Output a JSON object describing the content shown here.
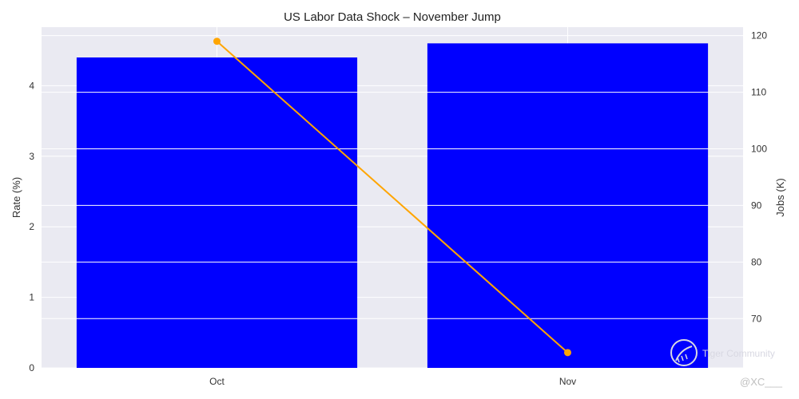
{
  "chart_data": {
    "type": "bar+line",
    "title": "US Labor Data Shock – November Jump",
    "categories": [
      "Oct",
      "Nov"
    ],
    "bar_series": {
      "name": "Rate (%)",
      "axis": "left",
      "values": [
        4.4,
        4.6
      ],
      "color": "#0000ff"
    },
    "line_series": {
      "name": "Jobs (K)",
      "axis": "right",
      "values": [
        119,
        64
      ],
      "color": "#ffa500"
    },
    "ylabel_left": "Rate (%)",
    "ylabel_right": "Jobs (K)",
    "ylim_left": [
      0,
      4.83
    ],
    "ylim_right": [
      61.3,
      121.5
    ],
    "yticks_left": [
      "0",
      "1",
      "2",
      "3",
      "4"
    ],
    "yticks_right": [
      "70",
      "80",
      "90",
      "100",
      "110",
      "120"
    ],
    "grid": true,
    "plot_background": "#eaeaf2"
  },
  "watermark": {
    "text": "Tiger Community",
    "handle": "@XC___"
  }
}
